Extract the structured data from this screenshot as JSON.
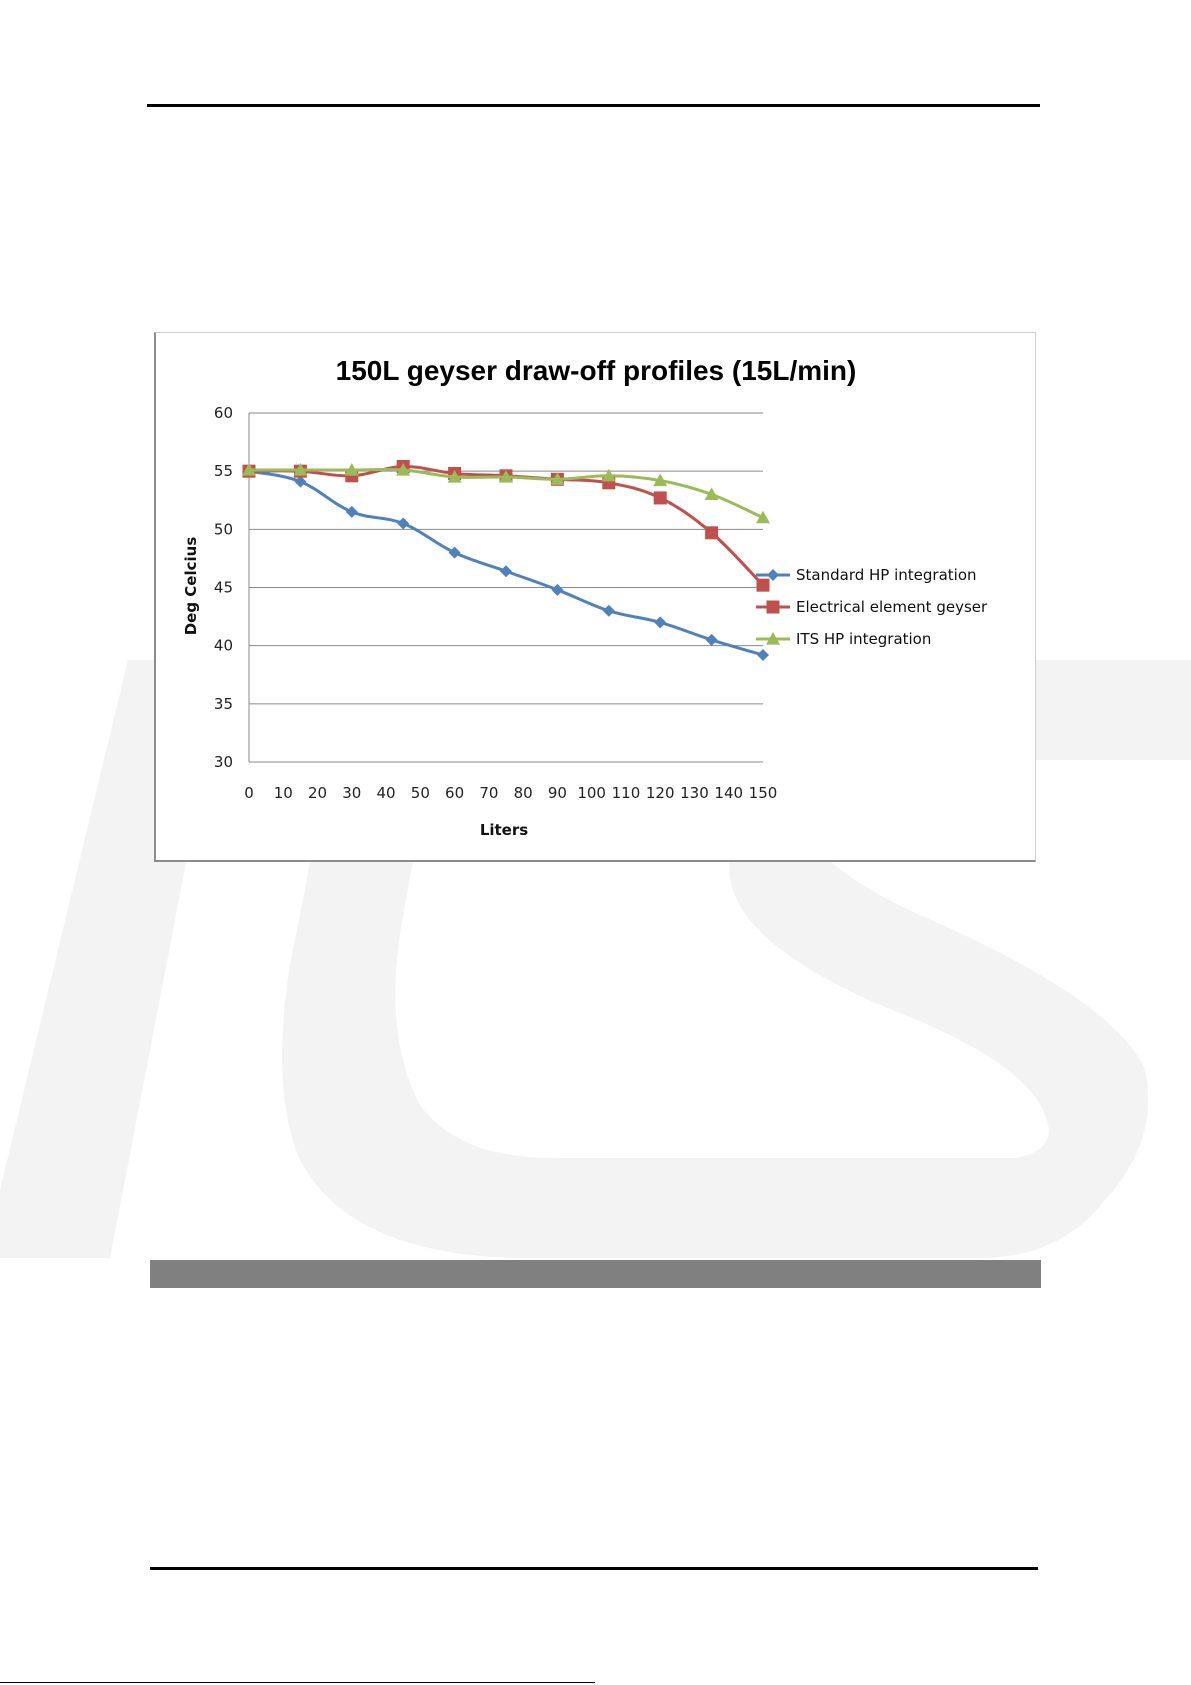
{
  "chart_data": {
    "type": "line",
    "title": "150L geyser draw-off profiles (15L/min)",
    "xlabel": "Liters",
    "ylabel": "Deg Celcius",
    "x_ticks": [
      "0",
      "10",
      "20",
      "30",
      "40",
      "50",
      "60",
      "70",
      "80",
      "90",
      "100",
      "110",
      "120",
      "130",
      "140",
      "150"
    ],
    "y_ticks": [
      "30",
      "35",
      "40",
      "45",
      "50",
      "55",
      "60"
    ],
    "xlim": [
      0,
      150
    ],
    "ylim": [
      30,
      60
    ],
    "grid": "horizontal",
    "legend_position": "right",
    "x": [
      0,
      15,
      30,
      45,
      60,
      75,
      90,
      105,
      120,
      135,
      150
    ],
    "series": [
      {
        "name": "Standard HP integration",
        "color": "#4f81bd",
        "marker": "diamond",
        "values": [
          55,
          54.1,
          51.5,
          50.5,
          48,
          46.4,
          44.8,
          43,
          42,
          40.5,
          39.2
        ]
      },
      {
        "name": "Electrical element geyser",
        "color": "#c0504d",
        "marker": "square",
        "values": [
          55,
          55,
          54.6,
          55.4,
          54.8,
          54.6,
          54.3,
          54,
          52.7,
          49.7,
          45.2
        ]
      },
      {
        "name": "ITS HP integration",
        "color": "#9bbb59",
        "marker": "triangle",
        "values": [
          55.1,
          55.1,
          55.1,
          55.1,
          54.5,
          54.5,
          54.3,
          54.6,
          54.2,
          53,
          51
        ]
      }
    ]
  }
}
